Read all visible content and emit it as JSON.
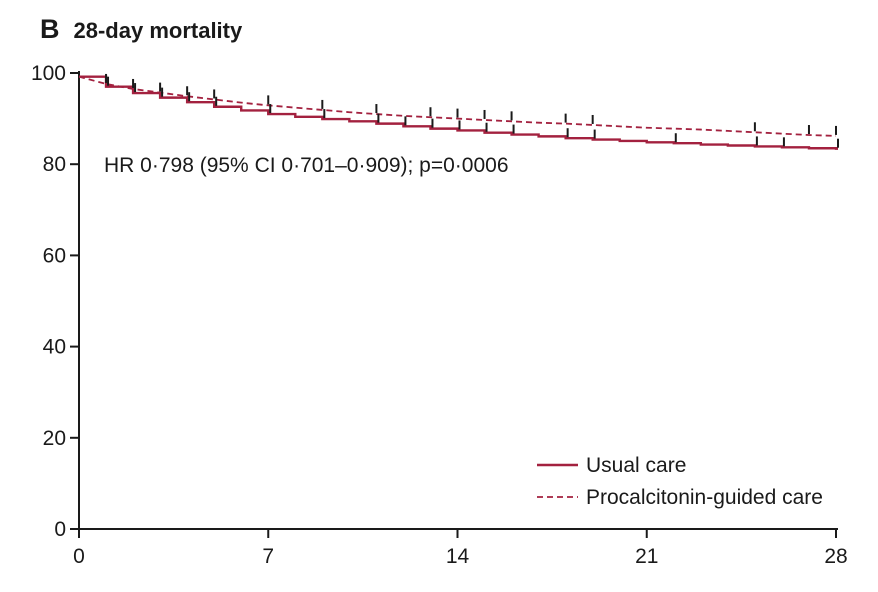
{
  "panel": {
    "letter": "B",
    "title": "28-day mortality"
  },
  "colors": {
    "series": "#a3213f",
    "axis": "#1a1a1a"
  },
  "chart_data": {
    "type": "line",
    "title": "28-day mortality",
    "xlabel": "",
    "ylabel": "",
    "xlim": [
      0,
      28
    ],
    "ylim": [
      0,
      100
    ],
    "x_ticks": [
      0,
      7,
      14,
      21,
      28
    ],
    "y_ticks": [
      0,
      20,
      40,
      60,
      80,
      100
    ],
    "annotation": "HR 0·798 (95% CI 0·701–0·909); p=0·0006",
    "legend_position": "bottom-right",
    "series": [
      {
        "name": "Usual care",
        "style": "solid",
        "step": true,
        "x": [
          0,
          1,
          2,
          3,
          4,
          5,
          6,
          7,
          8,
          9,
          10,
          11,
          12,
          13,
          14,
          15,
          16,
          17,
          18,
          19,
          20,
          21,
          22,
          23,
          24,
          25,
          26,
          27,
          28
        ],
        "y": [
          99.2,
          97.0,
          95.6,
          94.6,
          93.6,
          92.6,
          91.8,
          91.0,
          90.4,
          89.9,
          89.4,
          88.9,
          88.3,
          87.8,
          87.4,
          86.9,
          86.5,
          86.1,
          85.7,
          85.4,
          85.1,
          84.8,
          84.6,
          84.3,
          84.1,
          83.9,
          83.7,
          83.5,
          83.4
        ],
        "censor_x": [
          1,
          2,
          3,
          4,
          5,
          7,
          9,
          11,
          12,
          13,
          14,
          15,
          16,
          18,
          19,
          22,
          25,
          26,
          28
        ]
      },
      {
        "name": "Procalcitonin-guided care",
        "style": "dashed",
        "step": false,
        "x": [
          0,
          1,
          2,
          3,
          4,
          5,
          6,
          7,
          8,
          9,
          10,
          11,
          12,
          13,
          14,
          15,
          16,
          17,
          18,
          19,
          20,
          21,
          22,
          23,
          24,
          25,
          26,
          27,
          28
        ],
        "y": [
          99.2,
          97.6,
          96.5,
          95.7,
          94.9,
          94.2,
          93.5,
          92.9,
          92.4,
          91.9,
          91.4,
          91.0,
          90.6,
          90.3,
          90.0,
          89.7,
          89.4,
          89.1,
          88.9,
          88.6,
          88.3,
          88.0,
          87.8,
          87.6,
          87.3,
          87.0,
          86.7,
          86.4,
          86.2
        ],
        "censor_x": [
          1,
          2,
          3,
          4,
          5,
          7,
          9,
          11,
          13,
          14,
          15,
          16,
          18,
          19,
          25,
          27,
          28
        ]
      }
    ]
  }
}
